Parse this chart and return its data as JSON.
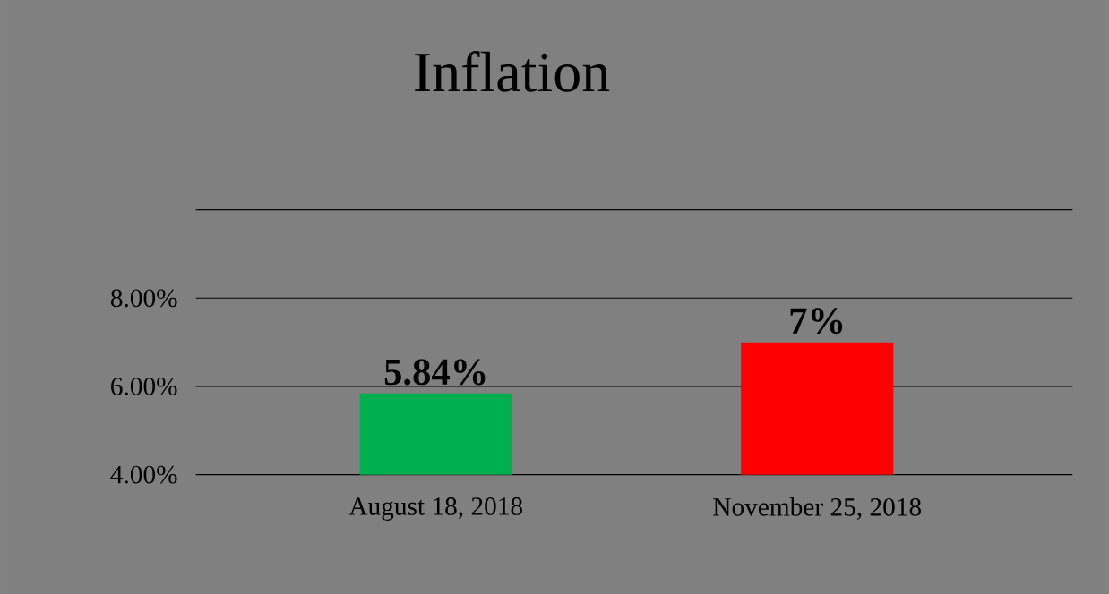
{
  "chart_data": {
    "type": "bar",
    "title": "Inflation",
    "categories": [
      "August 18, 2018",
      "November 25, 2018"
    ],
    "values": [
      5.84,
      7
    ],
    "value_labels": [
      "5.84%",
      "7%"
    ],
    "colors": [
      "#00b050",
      "#ff0000"
    ],
    "ylim": [
      4,
      10
    ],
    "yticks": [
      {
        "value": 4,
        "label": "4.00%"
      },
      {
        "value": 6,
        "label": "6.00%"
      },
      {
        "value": 8,
        "label": "8.00%"
      },
      {
        "value": 10,
        "label": null
      }
    ],
    "grid": "y"
  }
}
